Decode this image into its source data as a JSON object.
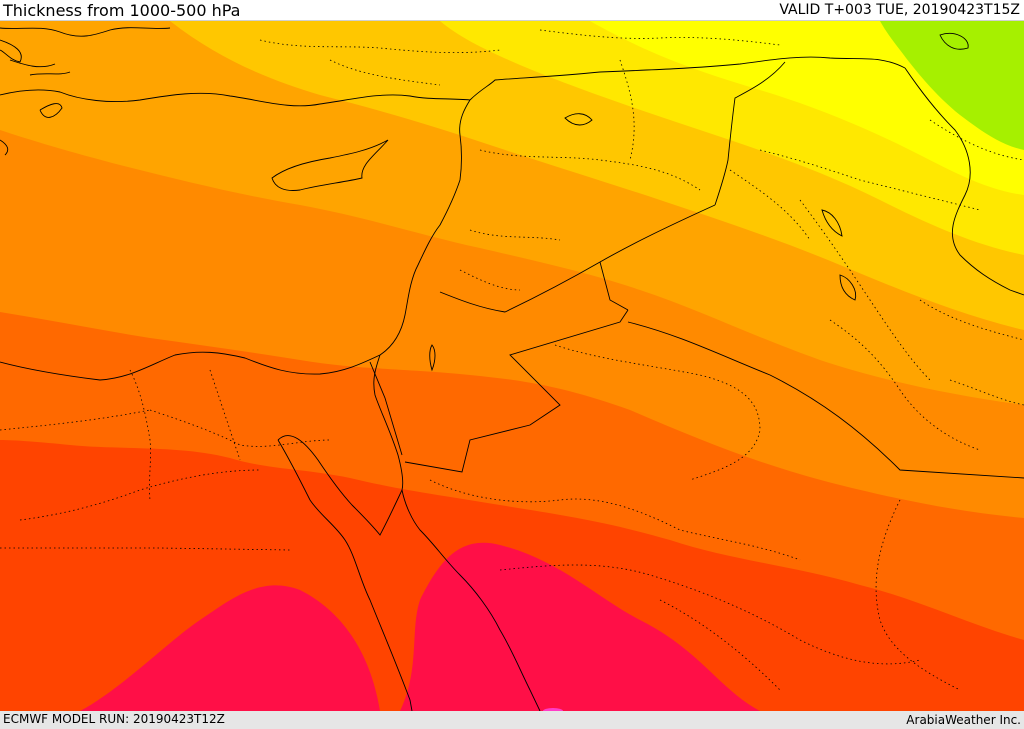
{
  "header": {
    "title": "Thickness from 1000-500 hPa",
    "valid": "VALID T+003 TUE, 20190423T15Z"
  },
  "footer": {
    "model_run": "ECMWF MODEL RUN: 20190423T12Z",
    "credit": "ArabiaWeather Inc."
  },
  "colors": {
    "greenyellow": "#a6f000",
    "yellow": "#ffff00",
    "lightyellow": "#ffe800",
    "goldenrod": "#ffc700",
    "amber": "#ffa400",
    "orange": "#ff8a00",
    "darkorange": "#ff6900",
    "redorange": "#ff4400",
    "crimson": "#ff0f47",
    "magenta": "#ff3cc8",
    "border": "#000000"
  }
}
